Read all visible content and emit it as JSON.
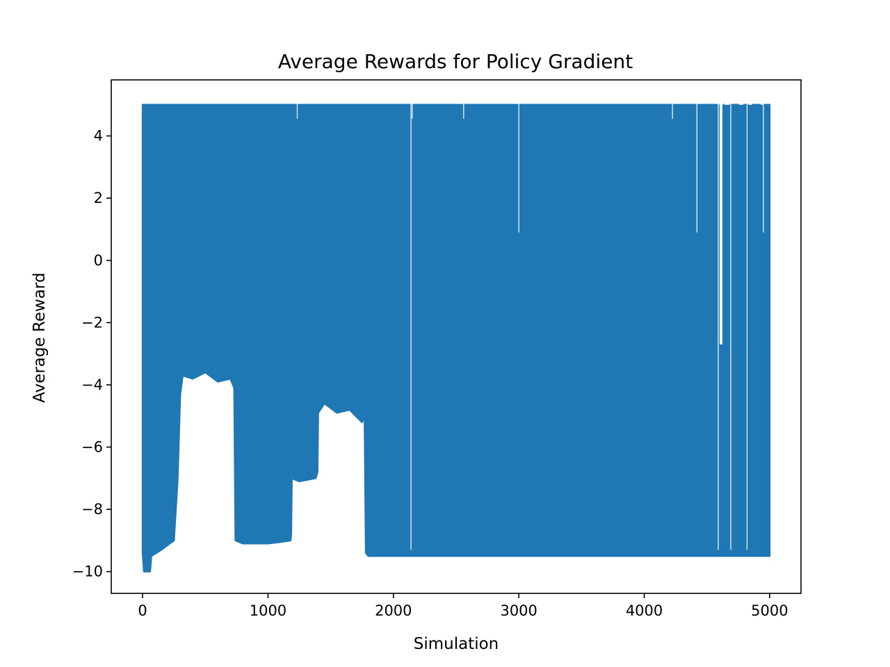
{
  "chart_data": {
    "type": "line",
    "title": "Average Rewards for Policy Gradient",
    "xlabel": "Simulation",
    "ylabel": "Average Reward",
    "xlim": [
      -250,
      5250
    ],
    "ylim": [
      -10.7,
      5.8
    ],
    "xticks": [
      0,
      1000,
      2000,
      3000,
      4000,
      5000
    ],
    "xtick_labels": [
      "0",
      "1000",
      "2000",
      "3000",
      "4000",
      "5000"
    ],
    "yticks": [
      -10,
      -8,
      -6,
      -4,
      -2,
      0,
      2,
      4
    ],
    "ytick_labels": [
      "−10",
      "−8",
      "−6",
      "−4",
      "−2",
      "0",
      "2",
      "4"
    ],
    "grid": false,
    "legend": "none",
    "series_color": "#1f77b4",
    "series": [
      {
        "x_range": [
          0,
          5000
        ],
        "max": 5.0,
        "min_envelope": [
          [
            0,
            -9.4
          ],
          [
            10,
            -10.0
          ],
          [
            60,
            -10.0
          ],
          [
            70,
            -9.5
          ],
          [
            150,
            -9.3
          ],
          [
            250,
            -9.0
          ],
          [
            280,
            -7.0
          ],
          [
            300,
            -4.3
          ],
          [
            320,
            -3.7
          ],
          [
            400,
            -3.8
          ],
          [
            500,
            -3.6
          ],
          [
            600,
            -3.9
          ],
          [
            700,
            -3.8
          ],
          [
            730,
            -4.1
          ],
          [
            740,
            -9.0
          ],
          [
            800,
            -9.1
          ],
          [
            1000,
            -9.1
          ],
          [
            1100,
            -9.05
          ],
          [
            1180,
            -9.0
          ],
          [
            1185,
            -8.8
          ],
          [
            1190,
            -7.0
          ],
          [
            1250,
            -7.1
          ],
          [
            1380,
            -7.0
          ],
          [
            1395,
            -6.8
          ],
          [
            1400,
            -4.9
          ],
          [
            1450,
            -4.6
          ],
          [
            1550,
            -4.9
          ],
          [
            1650,
            -4.8
          ],
          [
            1750,
            -5.2
          ],
          [
            1770,
            -5.0
          ],
          [
            1780,
            -9.4
          ],
          [
            1800,
            -9.5
          ],
          [
            2000,
            -9.5
          ],
          [
            2500,
            -9.5
          ],
          [
            3000,
            -9.5
          ],
          [
            3500,
            -9.5
          ],
          [
            4000,
            -9.5
          ],
          [
            4500,
            -9.5
          ],
          [
            4600,
            -9.5
          ],
          [
            5000,
            -9.5
          ]
        ],
        "max_dips": [
          [
            1233,
            4.55
          ],
          [
            2140,
            -9.3
          ],
          [
            2150,
            4.55
          ],
          [
            2560,
            4.55
          ],
          [
            3000,
            0.9
          ],
          [
            4225,
            4.55
          ],
          [
            4420,
            0.9
          ],
          [
            4590,
            -9.3
          ],
          [
            4605,
            -2.7
          ],
          [
            4690,
            -9.3
          ],
          [
            4820,
            -9.3
          ],
          [
            4950,
            0.9
          ]
        ],
        "upper_gaps": [
          [
            4598,
            4630,
            5.0,
            -2.7
          ],
          [
            4640,
            4680,
            5.0,
            5.0
          ],
          [
            4755,
            4790,
            5.0,
            5.0
          ],
          [
            4830,
            4860,
            5.0,
            5.0
          ],
          [
            4930,
            4945,
            5.0,
            5.0
          ]
        ]
      }
    ]
  }
}
